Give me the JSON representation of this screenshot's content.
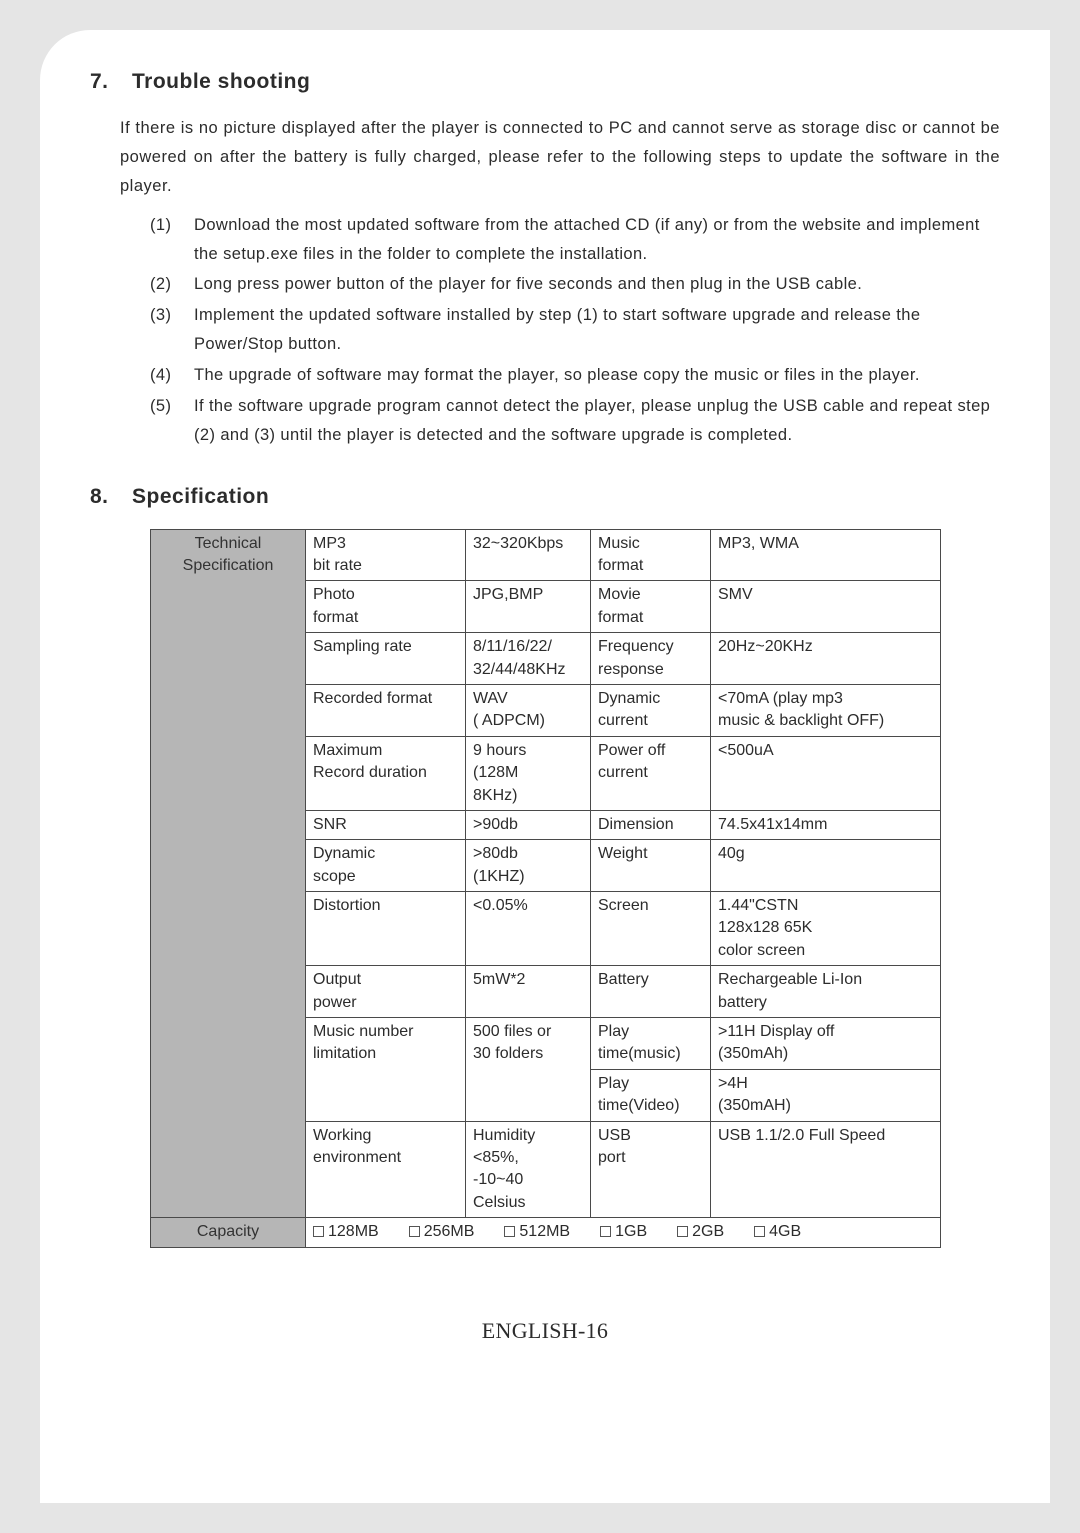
{
  "sections": {
    "trouble": {
      "num": "7.",
      "title": "Trouble shooting"
    },
    "spec": {
      "num": "8.",
      "title": "Specification"
    }
  },
  "intro": "If there is no picture displayed after the player is connected to PC and cannot serve as storage disc or cannot be powered on after the battery is fully charged, please refer to the following steps to update the software in the player.",
  "steps": [
    {
      "n": "(1)",
      "t": "Download the most updated software from the attached CD (if any) or from the website and implement the setup.exe files in the folder to complete the installation."
    },
    {
      "n": "(2)",
      "t": "Long press power button of the player for five seconds and then plug in the USB cable."
    },
    {
      "n": "(3)",
      "t": "Implement the updated software installed by step (1) to start software upgrade and release the Power/Stop button."
    },
    {
      "n": "(4)",
      "t": "The upgrade of software may format the player, so please copy the music or files in the player."
    },
    {
      "n": "(5)",
      "t": "If the software upgrade program cannot detect the player, please unplug the USB cable and repeat step (2) and (3) until the player is detected and the software upgrade is completed."
    }
  ],
  "spec_table": {
    "rowhead1": "Technical Specification",
    "rowhead2": "Capacity",
    "rows": [
      [
        "MP3\nbit rate",
        "32~320Kbps",
        "Music\nformat",
        "MP3, WMA"
      ],
      [
        "Photo\nformat",
        "JPG,BMP",
        "Movie\nformat",
        "SMV"
      ],
      [
        "Sampling rate",
        "8/11/16/22/\n32/44/48KHz",
        "Frequency\nresponse",
        "20Hz~20KHz"
      ],
      [
        "Recorded format",
        "WAV\n( ADPCM)",
        "Dynamic\ncurrent",
        "<70mA (play mp3\nmusic & backlight OFF)"
      ],
      [
        "Maximum\nRecord duration",
        "9 hours\n(128M\n8KHz)",
        "Power off\ncurrent",
        "<500uA"
      ],
      [
        "SNR",
        ">90db",
        "Dimension",
        "74.5x41x14mm"
      ],
      [
        "Dynamic\nscope",
        ">80db\n(1KHZ)",
        "Weight",
        "40g"
      ],
      [
        "Distortion",
        "<0.05%",
        "Screen",
        "1.44\"CSTN\n128x128 65K\ncolor screen"
      ],
      [
        "Output\npower",
        "5mW*2",
        "Battery",
        "Rechargeable Li-Ion\nbattery"
      ],
      [
        "Music number\nlimitation",
        "500 files or\n30 folders",
        "Play\ntime(music)",
        ">11H Display off\n(350mAh)"
      ],
      [
        "",
        "",
        "Play\ntime(Video)",
        ">4H\n(350mAH)"
      ],
      [
        "Working\nenvironment",
        "Humidity\n<85%,\n-10~40\nCelsius",
        "USB\nport",
        "USB 1.1/2.0 Full Speed"
      ]
    ],
    "capacity_options": [
      "128MB",
      "256MB",
      "512MB",
      "1GB",
      "2GB",
      "4GB"
    ]
  },
  "footer": "ENGLISH-16"
}
